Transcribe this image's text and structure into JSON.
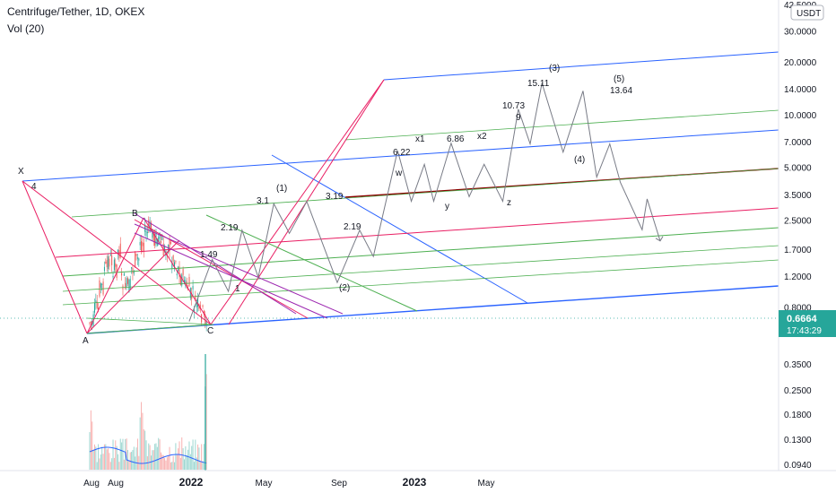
{
  "header": {
    "title": "Centrifuge/Tether, 1D, OKEX",
    "volume_label": "Vol (20)"
  },
  "currency_badge": "USDT",
  "current_price": {
    "value": "0.6664",
    "countdown": "17:43:29",
    "color": "#26a69a"
  },
  "colors": {
    "price_line": "#787b86",
    "pitchfork_blue": "#2962ff",
    "fib_pink": "#e91e63",
    "fan_green": "#4caf50",
    "fan_purple": "#9c27b0",
    "median_brown": "#8b0000",
    "candle_up": "#26a69a",
    "candle_down": "#ef5350"
  },
  "chart_data": {
    "type": "line",
    "title": "Centrifuge/Tether, 1D, OKEX",
    "y_scale": "log",
    "price_axis_ticks": [
      "42.5000",
      "30.0000",
      "20.0000",
      "14.0000",
      "10.0000",
      "7.0000",
      "5.0000",
      "3.5000",
      "2.5000",
      "1.7000",
      "1.2000",
      "0.8000"
    ],
    "volume_axis_ticks": [
      "0.3500",
      "0.2500",
      "0.1800",
      "0.1300",
      "0.0940"
    ],
    "x_tick_labels": [
      "Aug",
      "Aug",
      "2022",
      "May",
      "Sep",
      "2023",
      "May"
    ],
    "point_labels": [
      "X",
      "4",
      "A",
      "B",
      "C"
    ],
    "wave_labels": [
      "1.49",
      "2.19",
      "1",
      "3.1",
      "(1)",
      "3.19",
      "2.19",
      "(2)",
      "6.22",
      "x1",
      "w",
      "y",
      "6.86",
      "x2",
      "z",
      "10.73",
      "9",
      "15.11",
      "(3)",
      "(4)",
      "(5)",
      "13.64"
    ],
    "projected_path": [
      {
        "date": "2022-01-04",
        "price": 0.66
      },
      {
        "date": "2022-02-10",
        "price": 1.49
      },
      {
        "date": "2022-03-08",
        "price": 0.98
      },
      {
        "date": "2022-03-30",
        "price": 2.19
      },
      {
        "date": "2022-04-25",
        "price": 1.18
      },
      {
        "date": "2022-05-20",
        "price": 3.1
      },
      {
        "date": "2022-06-14",
        "price": 2.1
      },
      {
        "date": "2022-07-12",
        "price": 3.19
      },
      {
        "date": "2022-08-30",
        "price": 1.1
      },
      {
        "date": "2022-10-05",
        "price": 2.19
      },
      {
        "date": "2022-10-27",
        "price": 1.55
      },
      {
        "date": "2022-12-05",
        "price": 6.22
      },
      {
        "date": "2022-12-27",
        "price": 3.2
      },
      {
        "date": "2023-01-17",
        "price": 5.2
      },
      {
        "date": "2023-02-01",
        "price": 3.2
      },
      {
        "date": "2023-03-01",
        "price": 6.86
      },
      {
        "date": "2023-03-30",
        "price": 3.4
      },
      {
        "date": "2023-04-23",
        "price": 5.2
      },
      {
        "date": "2023-05-23",
        "price": 3.2
      },
      {
        "date": "2023-06-17",
        "price": 10.73
      },
      {
        "date": "2023-07-06",
        "price": 6.8
      },
      {
        "date": "2023-07-25",
        "price": 15.11
      },
      {
        "date": "2023-08-28",
        "price": 6.1
      },
      {
        "date": "2023-09-29",
        "price": 13.64
      },
      {
        "date": "2023-10-21",
        "price": 4.4
      },
      {
        "date": "2023-11-11",
        "price": 6.8
      },
      {
        "date": "2023-11-28",
        "price": 4.1
      },
      {
        "date": "2024-01-02",
        "price": 2.2
      },
      {
        "date": "2024-01-10",
        "price": 3.3
      },
      {
        "date": "2024-01-31",
        "price": 1.9
      }
    ]
  }
}
